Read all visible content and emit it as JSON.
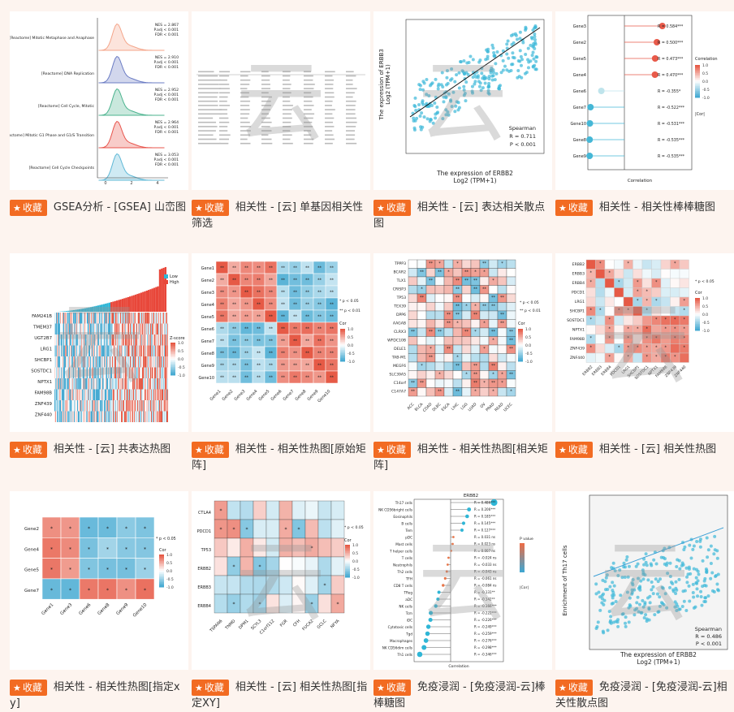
{
  "fav_label": "收藏",
  "accent": "#f26b22",
  "watermark": "云",
  "cards": [
    {
      "title": "GSEA分析 - [GSEA] 山峦图",
      "icon": "gsea-ridge-thumbnail",
      "rows": [
        {
          "label": "[Reactome] Mitotic Metaphase and Anaphase",
          "nes": "NES = 2.867",
          "padj": "P.adj < 0.001",
          "fdr": "FDR < 0.001"
        },
        {
          "label": "[Reactome] DNA Replication",
          "nes": "NES = 2.910",
          "padj": "P.adj < 0.001",
          "fdr": "FDR < 0.001"
        },
        {
          "label": "[Reactome] Cell Cycle, Mitotic",
          "nes": "NES = 2.952",
          "padj": "P.adj < 0.001",
          "fdr": "FDR < 0.001"
        },
        {
          "label": "[Reactome] Mitotic G1 Phase and G1/S Transition",
          "nes": "NES = 2.964",
          "padj": "P.adj < 0.001",
          "fdr": "FDR < 0.001"
        },
        {
          "label": "[Reactome] Cell Cycle Checkpoints",
          "nes": "NES = 3.053",
          "padj": "P.adj < 0.001",
          "fdr": "FDR < 0.001"
        }
      ]
    },
    {
      "title": "相关性 - [云] 单基因相关性筛选",
      "icon": "table-thumbnail"
    },
    {
      "title": "相关性 - [云] 表达相关散点图",
      "icon": "scatter-thumbnail",
      "ylab1": "The expression of ERBB3",
      "ylab2": "Log2 (TPM+1)",
      "xlab1": "The expression of ERBB2",
      "xlab2": "Log2 (TPM+1)",
      "method": "Spearman",
      "r": "R = 0.711",
      "p": "P < 0.001"
    },
    {
      "title": "相关性 - 相关性棒棒糖图",
      "icon": "lollipop-thumbnail",
      "genes": [
        "Gene3",
        "Gene2",
        "Gene5",
        "Gene4",
        "Gene6",
        "Gene7",
        "Gene10",
        "Gene8",
        "Gene9"
      ],
      "r": [
        "R = 0.584***",
        "R = 0.500***",
        "R = 0.473***",
        "R = 0.470***",
        "R = -0.355*",
        "R = -0.522***",
        "R = -0.531***",
        "R = -0.535***",
        "R = -0.535***"
      ],
      "xlab": "Correlation",
      "legend": "Correlation",
      "cor": "|Cor|"
    },
    {
      "title": "相关性 - [云] 共表达热图",
      "icon": "coexpression-heatmap-thumbnail",
      "genes": [
        "FAM241B",
        "TMEM37",
        "UGT2B7",
        "LRG1",
        "SHCBP1",
        "SOSTDC1",
        "NPTX1",
        "FAM98B",
        "ZNF439",
        "ZNF440"
      ],
      "low": "Low",
      "high": "High",
      "zscore": "Z-score"
    },
    {
      "title": "相关性 - 相关性热图[原始矩阵]",
      "icon": "correlation-heatmap-thumbnail",
      "genes": [
        "Gene1",
        "Gene2",
        "Gene3",
        "Gene4",
        "Gene5",
        "Gene6",
        "Gene7",
        "Gene8",
        "Gene9",
        "Gene10"
      ],
      "p1": "* p < 0.05",
      "p2": "** p < 0.01",
      "cor": "Cor"
    },
    {
      "title": "相关性 - 相关性热图[相关矩阵]",
      "icon": "correlation-matrix-thumbnail",
      "rows": [
        "TPPP3",
        "BCAR2",
        "TLX1",
        "CRISP3",
        "TP53",
        "TEX39",
        "DPP6",
        "AAGAB",
        "CLRX3",
        "WFDC10B",
        "DELE1",
        "TAB-M1",
        "MEGF6",
        "SLC39A5",
        "C14orf",
        "C147A7"
      ],
      "cols": [
        "ACC",
        "BLCA",
        "COAD",
        "DLBC",
        "ESCA",
        "LIHC",
        "LGG",
        "LUAD",
        "OV",
        "PRAD",
        "READ",
        "UCEC"
      ],
      "p1": "* p < 0.05",
      "p2": "** p < 0.01",
      "cor": "Cor"
    },
    {
      "title": "相关性 - [云] 相关性热图",
      "icon": "triangle-heatmap-thumbnail",
      "genes": [
        "ERBB2",
        "ERBB3",
        "ERBB4",
        "PDCD1",
        "LRG1",
        "SHCBP1",
        "SOSTDC1",
        "NPTX1",
        "FAM98B",
        "ZNF439",
        "ZNF440"
      ],
      "p1": "* p < 0.05",
      "cor": "Cor"
    },
    {
      "title": "相关性 - 相关性热图[指定xy]",
      "icon": "xy-heatmap-thumbnail",
      "rows": [
        "Gene2",
        "Gene4",
        "Gene5",
        "Gene7"
      ],
      "cols": [
        "Gene1",
        "Gene3",
        "Gene6",
        "Gene8",
        "Gene9",
        "Gene10"
      ],
      "p1": "* p < 0.05",
      "cor": "Cor"
    },
    {
      "title": "相关性 - [云] 相关性热图[指定XY]",
      "icon": "xy-heatmap-cloud-thumbnail",
      "rows": [
        "CTLA4",
        "PDCD1",
        "TP53",
        "ERBB2",
        "ERBB3",
        "ERBB4"
      ],
      "cols": [
        "TSPAN6",
        "TNMD",
        "DPM1",
        "SCYL3",
        "C1orf112",
        "FGR",
        "CFH",
        "FUCA2",
        "GCLC",
        "NFYA"
      ],
      "p1": "* p < 0.05",
      "cor": "Cor"
    },
    {
      "title": "免疫浸润 - [免疫浸润-云]棒棒糖图",
      "icon": "immune-lollipop-thumbnail",
      "gene": "ERBB2",
      "cells": [
        "Th17 cells",
        "NK CD56bright cells",
        "Eosinophils",
        "B cells",
        "Tem",
        "pDC",
        "Mast cells",
        "T helper cells",
        "T cells",
        "Neutrophils",
        "Th2 cells",
        "TFH",
        "CD8 T cells",
        "TReg",
        "aDC",
        "NK cells",
        "Tcm",
        "iDC",
        "Cytotoxic cells",
        "Tgd",
        "Macrophages",
        "NK CD56dim cells",
        "Th1 cells"
      ],
      "r": [
        "R = 0.486***",
        "R = 0.206***",
        "R = 0.185***",
        "R = 0.145***",
        "R = 0.127***",
        "R = 0.031 ns",
        "R = 0.023 ns",
        "R = 0.007 ns",
        "R = -0.024 ns",
        "R = -0.033 ns",
        "R = -0.043 ns",
        "R = -0.061 ns",
        "R = -0.084 ns",
        "R = -0.131**",
        "R = -0.142**",
        "R = -0.166***",
        "R = -0.222***",
        "R = -0.226***",
        "R = -0.249***",
        "R = -0.259***",
        "R = -0.276***",
        "R = -0.298***",
        "R = -0.346***"
      ],
      "xlab": "Correlation",
      "pval": "P value",
      "cor": "|Cor|"
    },
    {
      "title": "免疫浸润 - [免疫浸润-云]相关性散点图",
      "icon": "immune-scatter-thumbnail",
      "ylab": "Enrichment of Th17 cells",
      "xlab1": "The expression of ERBB2",
      "xlab2": "Log2 (TPM+1)",
      "method": "Spearman",
      "r": "R = 0.486",
      "p": "P < 0.001"
    }
  ]
}
